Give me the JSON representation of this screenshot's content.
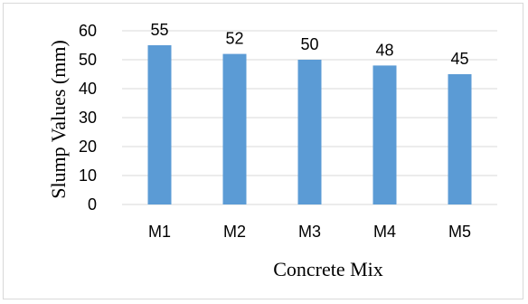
{
  "chart_data": {
    "type": "bar",
    "categories": [
      "M1",
      "M2",
      "M3",
      "M4",
      "M5"
    ],
    "values": [
      55,
      52,
      50,
      48,
      45
    ],
    "data_labels": [
      "55",
      "52",
      "50",
      "48",
      "45"
    ],
    "title": "",
    "xlabel": "Concrete Mix",
    "ylabel": "Slump Values (mm)",
    "ylim": [
      0,
      60
    ],
    "yticks": [
      0,
      10,
      20,
      30,
      40,
      50,
      60
    ],
    "grid": true,
    "legend": "none",
    "bar_color": "#5b9bd5",
    "grid_color": "#d9d9d9"
  }
}
